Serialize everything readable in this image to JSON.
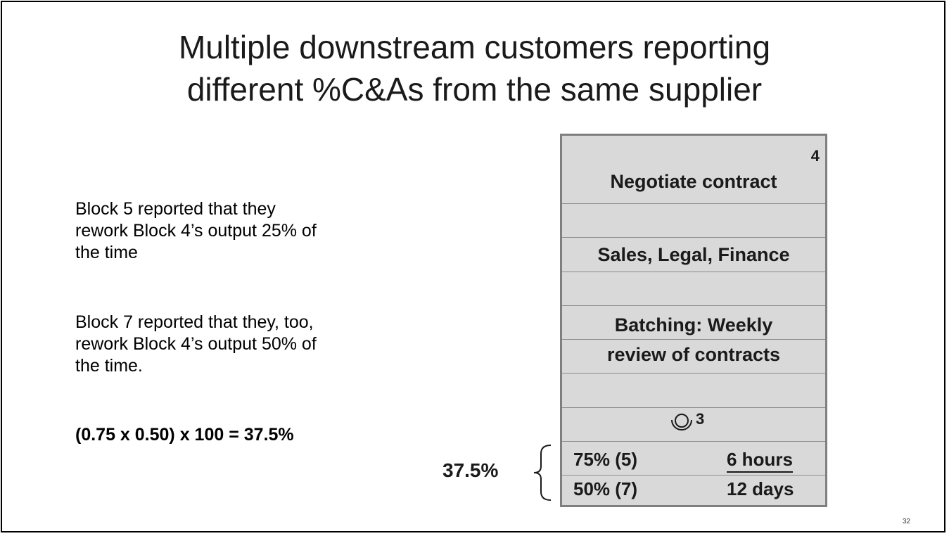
{
  "title": {
    "line1": "Multiple downstream customers reporting",
    "line2": "different %C&As from the same supplier"
  },
  "body": {
    "para1": [
      "Block 5 reported that they",
      "rework Block 4’s output 25% of",
      "the time"
    ],
    "para2": [
      "Block 7 reported that they, too,",
      "rework Block 4’s output 50% of",
      "the time."
    ],
    "formula": "(0.75 x 0.50) x 100 = 37.5%"
  },
  "block": {
    "number": "4",
    "name": "Negotiate contract",
    "functions": "Sales, Legal, Finance",
    "batching_line1": "Batching: Weekly",
    "batching_line2": "review of contracts",
    "people_count": "3",
    "people_icon": "person-icon",
    "metrics": [
      {
        "pca": "75% (5)",
        "time": "6 hours"
      },
      {
        "pca": "50% (7)",
        "time": "12 days"
      }
    ],
    "rolled_pca": "37.5%"
  },
  "page_number": "32",
  "colors": {
    "box_fill": "#d9d9d9",
    "box_border": "#7f7f7f",
    "text": "#1a1a1a"
  }
}
